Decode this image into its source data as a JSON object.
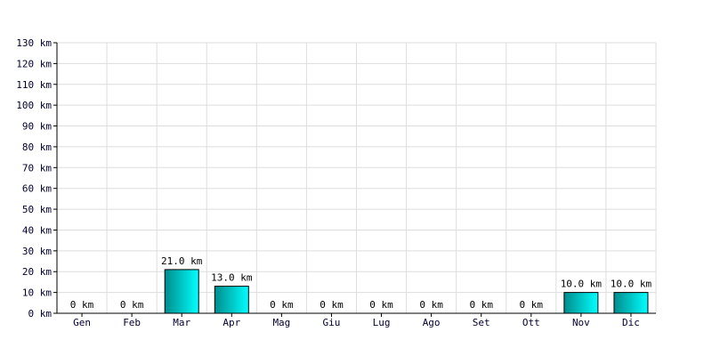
{
  "chart_data": {
    "type": "bar",
    "categories": [
      "Gen",
      "Feb",
      "Mar",
      "Apr",
      "Mag",
      "Giu",
      "Lug",
      "Ago",
      "Set",
      "Ott",
      "Nov",
      "Dic"
    ],
    "values": [
      0,
      0,
      21,
      13,
      0,
      0,
      0,
      0,
      0,
      0,
      10,
      10
    ],
    "value_labels": [
      "0 km",
      "0 km",
      "21.0 km",
      "13.0 km",
      "0 km",
      "0 km",
      "0 km",
      "0 km",
      "0 km",
      "0 km",
      "10.0 km",
      "10.0 km"
    ],
    "color": "#00c8c8",
    "ylim": [
      0,
      130
    ],
    "yticks": [
      {
        "value": 0,
        "label": "0 km"
      },
      {
        "value": 10,
        "label": "10 km"
      },
      {
        "value": 20,
        "label": "20 km"
      },
      {
        "value": 30,
        "label": "30 km"
      },
      {
        "value": 40,
        "label": "40 km"
      },
      {
        "value": 50,
        "label": "50 km"
      },
      {
        "value": 60,
        "label": "60 km"
      },
      {
        "value": 70,
        "label": "70 km"
      },
      {
        "value": 80,
        "label": "80 km"
      },
      {
        "value": 90,
        "label": "90 km"
      },
      {
        "value": 100,
        "label": "100 km"
      },
      {
        "value": 110,
        "label": "110 km"
      },
      {
        "value": 120,
        "label": "120 km"
      },
      {
        "value": 130,
        "label": "130 km"
      }
    ],
    "grid": true
  }
}
